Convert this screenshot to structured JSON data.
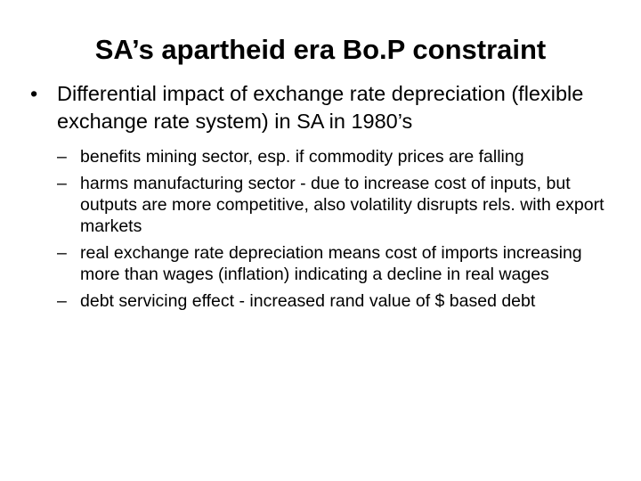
{
  "slide": {
    "title": "SA’s apartheid era Bo.P constraint",
    "bullet": {
      "marker": "•",
      "text": "Differential impact of exchange rate depreciation (flexible exchange rate system) in SA in 1980’s"
    },
    "sub_marker": "–",
    "sub_items": [
      "benefits mining sector, esp. if commodity prices are falling",
      "harms manufacturing sector - due to increase cost of inputs, but outputs are more competitive, also volatility disrupts rels. with export markets",
      "real exchange rate depreciation means cost of imports increasing more than wages (inflation) indicating a decline in real wages",
      "debt servicing effect - increased rand value of $ based debt"
    ]
  }
}
